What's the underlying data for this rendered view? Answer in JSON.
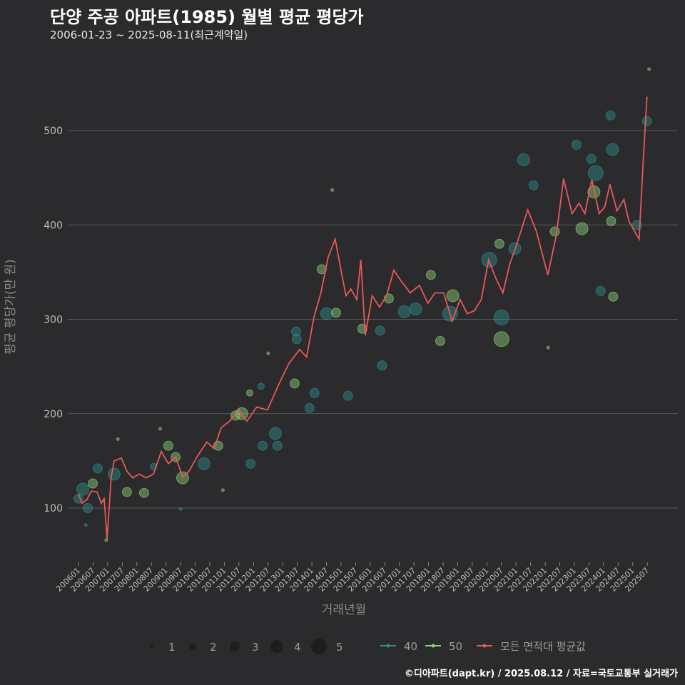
{
  "title": "단양 주공 아파트(1985) 월별 평균 평당가",
  "subtitle": "2006-01-23 ~ 2025-08-11(최근계약일)",
  "footer": "©디아파트(dapt.kr) / 2025.08.12 / 자료=국토교통부 실거래가",
  "colors": {
    "s40": "#2f8f8c",
    "s50": "#8fd27a",
    "avg": "#e8585a",
    "grid": "#5a5a5c"
  },
  "chart_data": {
    "type": "scatter",
    "title": "단양 주공 아파트(1985) 월별 평균 평당가",
    "xlabel": "거래년월",
    "ylabel": "평균 평당가(만 원)",
    "xlim": [
      2006.0,
      2025.5
    ],
    "ylim": [
      41,
      600
    ],
    "yticks": [
      100,
      200,
      300,
      400,
      500
    ],
    "xtick_labels": [
      "200601",
      "200607",
      "200701",
      "200707",
      "200801",
      "200807",
      "200901",
      "200907",
      "201001",
      "201007",
      "201101",
      "201107",
      "201201",
      "201207",
      "201301",
      "201307",
      "201401",
      "201407",
      "201501",
      "201507",
      "201601",
      "201607",
      "201701",
      "201707",
      "201801",
      "201807",
      "201901",
      "201907",
      "202001",
      "202007",
      "202101",
      "202107",
      "202201",
      "202207",
      "202301",
      "202307",
      "202401",
      "202407",
      "202501",
      "202507"
    ],
    "grid": true,
    "legend": {
      "placement": "bottom",
      "sizes": [
        1,
        2,
        3,
        4,
        5
      ],
      "series": [
        {
          "key": "s40",
          "label": "40"
        },
        {
          "key": "s50",
          "label": "50"
        },
        {
          "key": "avg",
          "label": "모든 면적대 평균값"
        }
      ]
    },
    "avg_line": {
      "name": "모든 면적대 평균값",
      "x": [
        2006.0,
        2006.12,
        2006.29,
        2006.44,
        2006.64,
        2006.78,
        2006.88,
        2006.98,
        2007.12,
        2007.22,
        2007.47,
        2007.66,
        2007.86,
        2008.08,
        2008.32,
        2008.57,
        2008.84,
        2009.08,
        2009.33,
        2009.57,
        2009.79,
        2010.06,
        2010.4,
        2010.65,
        2010.89,
        2011.18,
        2011.5,
        2011.77,
        2012.11,
        2012.48,
        2012.85,
        2013.21,
        2013.58,
        2013.82,
        2014.07,
        2014.31,
        2014.56,
        2014.8,
        2015.0,
        2015.17,
        2015.34,
        2015.54,
        2015.68,
        2015.83,
        2016.07,
        2016.32,
        2016.56,
        2016.81,
        2017.05,
        2017.37,
        2017.69,
        2017.98,
        2018.22,
        2018.52,
        2018.81,
        2019.08,
        2019.33,
        2019.57,
        2019.81,
        2020.06,
        2020.3,
        2020.55,
        2020.79,
        2021.04,
        2021.4,
        2021.7,
        2022.09,
        2022.38,
        2022.63,
        2022.92,
        2023.16,
        2023.36,
        2023.6,
        2023.85,
        2024.04,
        2024.22,
        2024.46,
        2024.7,
        2024.87,
        2025.07,
        2025.22,
        2025.36,
        2025.49
      ],
      "y": [
        115,
        105,
        109,
        118,
        117,
        105,
        110,
        67,
        132,
        150,
        153,
        139,
        132,
        136,
        132,
        136,
        160,
        147,
        154,
        133,
        139,
        154,
        170,
        163,
        185,
        192,
        204,
        192,
        207,
        204,
        230,
        253,
        268,
        260,
        302,
        328,
        366,
        385,
        352,
        325,
        332,
        321,
        363,
        283,
        325,
        313,
        325,
        352,
        341,
        328,
        336,
        317,
        328,
        328,
        298,
        321,
        306,
        309,
        321,
        363,
        344,
        328,
        359,
        381,
        416,
        393,
        347,
        389,
        449,
        412,
        423,
        412,
        448,
        412,
        419,
        443,
        415,
        427,
        404,
        393,
        385,
        468,
        536
      ]
    },
    "points": [
      {
        "x": 2006.0,
        "y": 110,
        "size": 3,
        "series": "s40"
      },
      {
        "x": 2006.15,
        "y": 120,
        "size": 4,
        "series": "s40"
      },
      {
        "x": 2006.32,
        "y": 100,
        "size": 3,
        "series": "s40"
      },
      {
        "x": 2006.25,
        "y": 82,
        "size": 1,
        "series": "s40"
      },
      {
        "x": 2006.49,
        "y": 126,
        "size": 3,
        "series": "s50"
      },
      {
        "x": 2006.66,
        "y": 142,
        "size": 3,
        "series": "s40"
      },
      {
        "x": 2006.95,
        "y": 66,
        "size": 1,
        "series": "s50"
      },
      {
        "x": 2007.22,
        "y": 136,
        "size": 4,
        "series": "s40"
      },
      {
        "x": 2007.35,
        "y": 173,
        "size": 1,
        "series": "s50"
      },
      {
        "x": 2007.66,
        "y": 117,
        "size": 3,
        "series": "s50"
      },
      {
        "x": 2008.25,
        "y": 116,
        "size": 3,
        "series": "s50"
      },
      {
        "x": 2008.57,
        "y": 144,
        "size": 2,
        "series": "s40"
      },
      {
        "x": 2008.8,
        "y": 184,
        "size": 1,
        "series": "s50"
      },
      {
        "x": 2009.08,
        "y": 166,
        "size": 3,
        "series": "s50"
      },
      {
        "x": 2009.33,
        "y": 154,
        "size": 3,
        "series": "s50"
      },
      {
        "x": 2009.57,
        "y": 132,
        "size": 4,
        "series": "s50"
      },
      {
        "x": 2009.5,
        "y": 99,
        "size": 1,
        "series": "s40"
      },
      {
        "x": 2010.3,
        "y": 147,
        "size": 4,
        "series": "s40"
      },
      {
        "x": 2010.79,
        "y": 166,
        "size": 3,
        "series": "s50"
      },
      {
        "x": 2010.95,
        "y": 119,
        "size": 1,
        "series": "s50"
      },
      {
        "x": 2011.38,
        "y": 198,
        "size": 3,
        "series": "s50"
      },
      {
        "x": 2011.6,
        "y": 200,
        "size": 4,
        "series": "s50"
      },
      {
        "x": 2011.9,
        "y": 147,
        "size": 3,
        "series": "s40"
      },
      {
        "x": 2011.87,
        "y": 222,
        "size": 2,
        "series": "s50"
      },
      {
        "x": 2012.26,
        "y": 229,
        "size": 2,
        "series": "s40"
      },
      {
        "x": 2012.31,
        "y": 166,
        "size": 3,
        "series": "s40"
      },
      {
        "x": 2012.5,
        "y": 264,
        "size": 1,
        "series": "s50"
      },
      {
        "x": 2012.75,
        "y": 179,
        "size": 4,
        "series": "s40"
      },
      {
        "x": 2012.82,
        "y": 166,
        "size": 3,
        "series": "s40"
      },
      {
        "x": 2013.41,
        "y": 232,
        "size": 3,
        "series": "s50"
      },
      {
        "x": 2013.46,
        "y": 287,
        "size": 3,
        "series": "s40"
      },
      {
        "x": 2013.48,
        "y": 279,
        "size": 3,
        "series": "s40"
      },
      {
        "x": 2013.92,
        "y": 206,
        "size": 3,
        "series": "s40"
      },
      {
        "x": 2014.09,
        "y": 222,
        "size": 3,
        "series": "s40"
      },
      {
        "x": 2014.34,
        "y": 353,
        "size": 3,
        "series": "s50"
      },
      {
        "x": 2014.51,
        "y": 306,
        "size": 4,
        "series": "s40"
      },
      {
        "x": 2014.7,
        "y": 437,
        "size": 1,
        "series": "s50"
      },
      {
        "x": 2014.83,
        "y": 307,
        "size": 3,
        "series": "s50"
      },
      {
        "x": 2015.24,
        "y": 219,
        "size": 3,
        "series": "s40"
      },
      {
        "x": 2015.73,
        "y": 290,
        "size": 3,
        "series": "s50"
      },
      {
        "x": 2016.34,
        "y": 288,
        "size": 3,
        "series": "s40"
      },
      {
        "x": 2016.41,
        "y": 251,
        "size": 3,
        "series": "s40"
      },
      {
        "x": 2016.64,
        "y": 322,
        "size": 3,
        "series": "s50"
      },
      {
        "x": 2017.17,
        "y": 308,
        "size": 4,
        "series": "s40"
      },
      {
        "x": 2017.56,
        "y": 311,
        "size": 4,
        "series": "s40"
      },
      {
        "x": 2018.08,
        "y": 347,
        "size": 3,
        "series": "s50"
      },
      {
        "x": 2018.4,
        "y": 277,
        "size": 3,
        "series": "s50"
      },
      {
        "x": 2018.74,
        "y": 306,
        "size": 5,
        "series": "s40"
      },
      {
        "x": 2018.83,
        "y": 325,
        "size": 4,
        "series": "s50"
      },
      {
        "x": 2020.08,
        "y": 363,
        "size": 5,
        "series": "s40"
      },
      {
        "x": 2020.5,
        "y": 279,
        "size": 5,
        "series": "s50"
      },
      {
        "x": 2020.5,
        "y": 302,
        "size": 5,
        "series": "s40"
      },
      {
        "x": 2020.43,
        "y": 380,
        "size": 3,
        "series": "s50"
      },
      {
        "x": 2020.96,
        "y": 375,
        "size": 4,
        "series": "s40"
      },
      {
        "x": 2021.26,
        "y": 469,
        "size": 4,
        "series": "s40"
      },
      {
        "x": 2021.6,
        "y": 442,
        "size": 3,
        "series": "s40"
      },
      {
        "x": 2022.1,
        "y": 270,
        "size": 1,
        "series": "s50"
      },
      {
        "x": 2022.33,
        "y": 393,
        "size": 3,
        "series": "s50"
      },
      {
        "x": 2023.26,
        "y": 396,
        "size": 4,
        "series": "s50"
      },
      {
        "x": 2023.07,
        "y": 485,
        "size": 3,
        "series": "s40"
      },
      {
        "x": 2023.58,
        "y": 470,
        "size": 3,
        "series": "s40"
      },
      {
        "x": 2023.73,
        "y": 455,
        "size": 5,
        "series": "s40"
      },
      {
        "x": 2023.67,
        "y": 435,
        "size": 4,
        "series": "s50"
      },
      {
        "x": 2023.9,
        "y": 330,
        "size": 3,
        "series": "s40"
      },
      {
        "x": 2024.24,
        "y": 516,
        "size": 3,
        "series": "s40"
      },
      {
        "x": 2024.26,
        "y": 404,
        "size": 3,
        "series": "s50"
      },
      {
        "x": 2024.31,
        "y": 480,
        "size": 4,
        "series": "s40"
      },
      {
        "x": 2024.33,
        "y": 324,
        "size": 3,
        "series": "s50"
      },
      {
        "x": 2025.15,
        "y": 400,
        "size": 3,
        "series": "s40"
      },
      {
        "x": 2025.49,
        "y": 510,
        "size": 3,
        "series": "s40"
      },
      {
        "x": 2025.56,
        "y": 565,
        "size": 1,
        "series": "s50"
      }
    ]
  }
}
